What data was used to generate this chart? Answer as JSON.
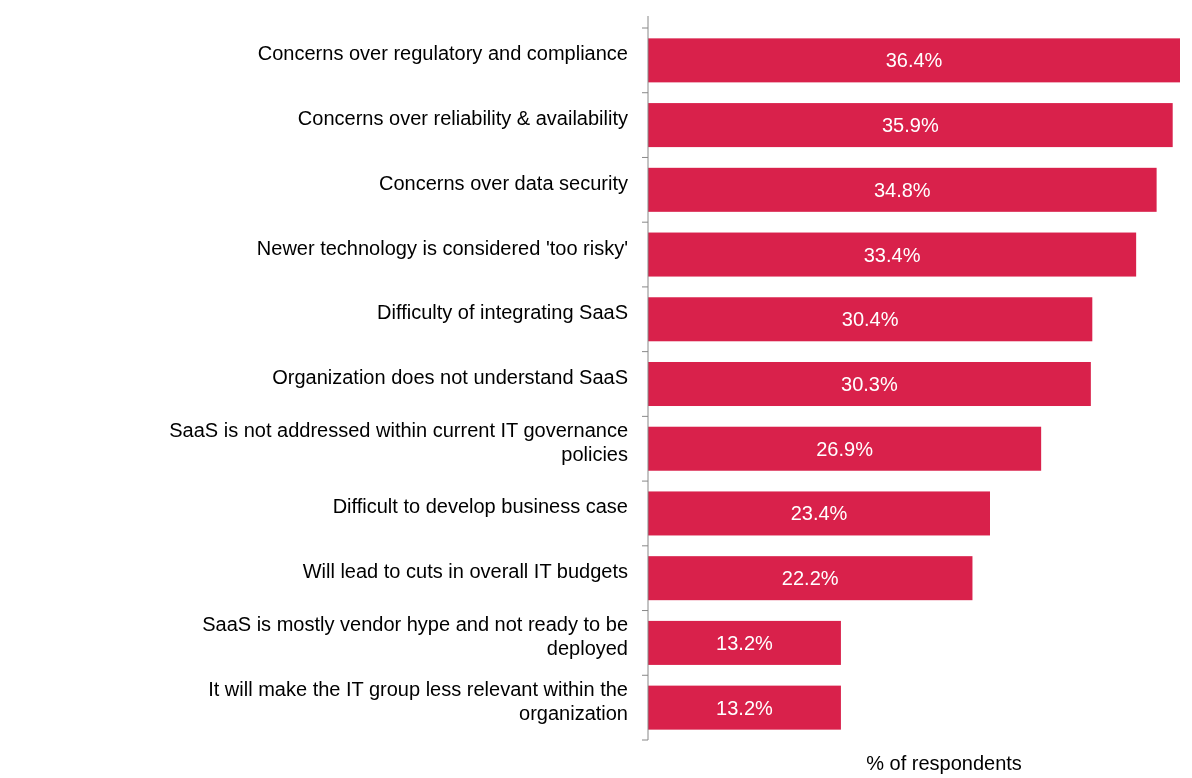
{
  "chart_data": {
    "type": "bar",
    "orientation": "horizontal",
    "xlabel": "% of respondents",
    "categories": [
      "Concerns over regulatory and compliance",
      "Concerns over reliability & availability",
      "Concerns over data security",
      "Newer technology is considered 'too risky'",
      "Difficulty of integrating SaaS",
      "Organization does not understand SaaS",
      "SaaS is not addressed within current IT governance policies",
      "Difficult to develop business case",
      "Will lead to cuts in overall IT budgets",
      "SaaS is mostly vendor hype and not ready to be deployed",
      "It will make the IT group less relevant within the organization"
    ],
    "values": [
      36.4,
      35.9,
      34.8,
      33.4,
      30.4,
      30.3,
      26.9,
      23.4,
      22.2,
      13.2,
      13.2
    ],
    "value_labels": [
      "36.4%",
      "35.9%",
      "34.8%",
      "33.4%",
      "30.4%",
      "30.3%",
      "26.9%",
      "23.4%",
      "22.2%",
      "13.2%",
      "13.2%"
    ],
    "color": "#d9214b"
  }
}
